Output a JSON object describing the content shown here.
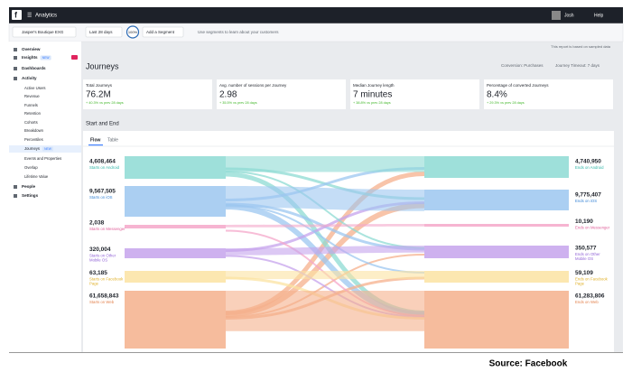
{
  "header": {
    "app": "Analytics",
    "user": "Josh",
    "help": "Help"
  },
  "toolbar": {
    "account": "Jasper's Boutique EXG",
    "date_range": "Last 28 days",
    "zoom": "100%",
    "segment": "Add a Segment",
    "hint": "Use segments to learn about your customers"
  },
  "sidebar": [
    {
      "label": "Overview"
    },
    {
      "label": "Insights",
      "badge": "NEW"
    },
    {
      "label": "Dashboards"
    },
    {
      "label": "Activity"
    },
    {
      "label": "Active Users"
    },
    {
      "label": "Revenue"
    },
    {
      "label": "Funnels"
    },
    {
      "label": "Retention"
    },
    {
      "label": "Cohorts"
    },
    {
      "label": "Breakdown"
    },
    {
      "label": "Percentiles"
    },
    {
      "label": "Journeys",
      "badge": "NEW"
    },
    {
      "label": "Events and Properties"
    },
    {
      "label": "Overlap"
    },
    {
      "label": "Lifetime Value"
    },
    {
      "label": "People"
    },
    {
      "label": "Settings"
    }
  ],
  "notice": "This report is based on sampled data",
  "page": {
    "title": "Journeys",
    "conversion": "Conversion: Purchases",
    "timeout": "Journey Timeout: 7 days"
  },
  "cards": [
    {
      "label": "Total Journeys",
      "value": "76.2M",
      "change": "+ 40.3% vs prev 28 days"
    },
    {
      "label": "Avg. number of sessions per Journey",
      "value": "2.98",
      "change": "+ 35.5% vs prev 28 days"
    },
    {
      "label": "Median Journey length",
      "value": "7 minutes",
      "change": "+ 38.8% vs prev 28 days"
    },
    {
      "label": "Percentage of converted Journeys",
      "value": "8.4%",
      "change": "+ 29.3% vs prev 28 days"
    }
  ],
  "section": {
    "title": "Start and End",
    "tabs": [
      "Flow",
      "Table"
    ]
  },
  "sankey": {
    "start": [
      {
        "value": "4,608,464",
        "label": "Starts on Android"
      },
      {
        "value": "9,567,505",
        "label": "Starts on iOS"
      },
      {
        "value": "2,038",
        "label": "Starts on Messenger"
      },
      {
        "value": "320,004",
        "label": "Starts on Other Mobile OS"
      },
      {
        "value": "63,185",
        "label": "Starts on Facebook Page"
      },
      {
        "value": "61,658,843",
        "label": "Starts on Web"
      }
    ],
    "end": [
      {
        "value": "4,740,950",
        "label": "Ends on Android"
      },
      {
        "value": "9,775,407",
        "label": "Ends on iOS"
      },
      {
        "value": "10,190",
        "label": "Ends on Messenger"
      },
      {
        "value": "350,577",
        "label": "Ends on Other Mobile OS"
      },
      {
        "value": "59,109",
        "label": "Ends on Facebook Page"
      },
      {
        "value": "61,283,806",
        "label": "Ends on Web"
      }
    ]
  },
  "caption": "Source: Facebook"
}
